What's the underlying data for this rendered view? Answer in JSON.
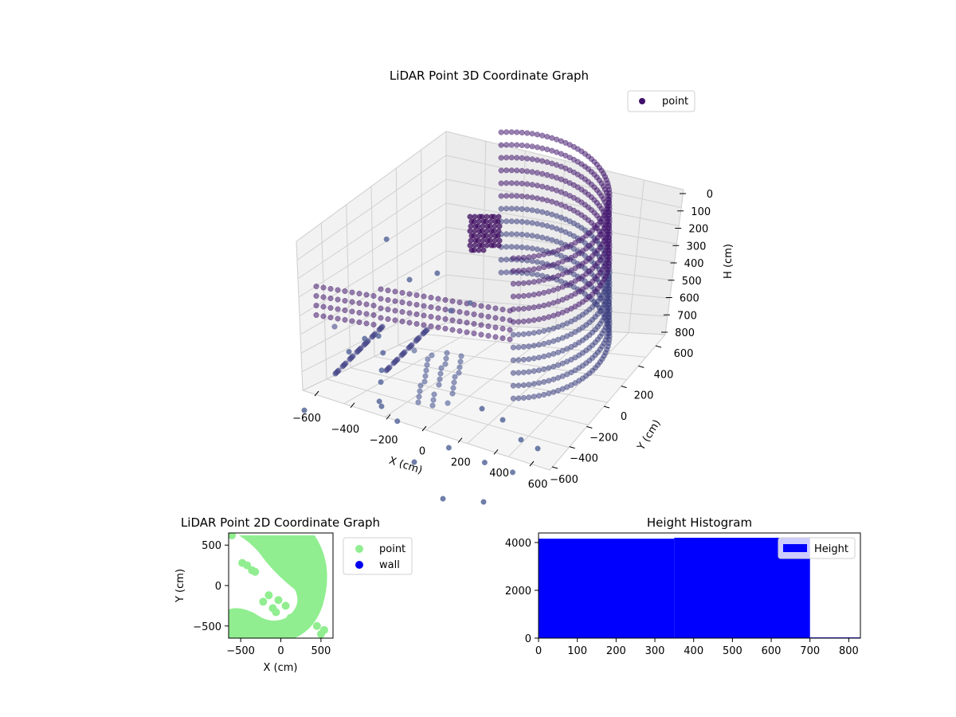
{
  "colors": {
    "point3d": "#41106b",
    "point2d": "#90ee90",
    "wall": "#0000ee",
    "histogram": "#0000ff",
    "grid": "#d0d0d0",
    "pane": "#f2f2f2"
  },
  "chart_data": [
    {
      "id": "lidar-3d",
      "type": "scatter",
      "projection": "3d",
      "title": "LiDAR Point 3D Coordinate Graph",
      "xlabel": "X (cm)",
      "ylabel": "Y (cm)",
      "zlabel": "H (cm)",
      "x_ticks": [
        "−600",
        "−400",
        "−200",
        "0",
        "200",
        "400",
        "600"
      ],
      "y_ticks": [
        "−600",
        "−400",
        "−200",
        "0",
        "200",
        "400",
        "600"
      ],
      "z_ticks": [
        "0",
        "100",
        "200",
        "300",
        "400",
        "500",
        "600",
        "700",
        "800"
      ],
      "xlim": [
        -650,
        650
      ],
      "ylim": [
        -650,
        650
      ],
      "zlim": [
        0,
        850
      ],
      "z_inverted": true,
      "grid": true,
      "legend": {
        "placement": "top-right",
        "entries": [
          "point"
        ]
      },
      "series": [
        {
          "name": "point",
          "outer_wall_radius_cm": 600,
          "outer_wall_angles_deg": [
            -75,
            -60,
            -45,
            -30,
            -15,
            0,
            15,
            30,
            45,
            60,
            75,
            90
          ],
          "inner_wall_radius_cm": 350,
          "wall_heights_cm": [
            0,
            100,
            200,
            300,
            400,
            500,
            600,
            700,
            800
          ],
          "scattered_points": [
            {
              "x": -650,
              "y": 200,
              "h": 800
            },
            {
              "x": -620,
              "y": 380,
              "h": 780
            },
            {
              "x": -560,
              "y": 420,
              "h": 760
            },
            {
              "x": -500,
              "y": 300,
              "h": 790
            },
            {
              "x": -450,
              "y": 100,
              "h": 800
            },
            {
              "x": -400,
              "y": -100,
              "h": 780
            },
            {
              "x": -350,
              "y": -300,
              "h": 800
            },
            {
              "x": -300,
              "y": -450,
              "h": 760
            },
            {
              "x": -200,
              "y": -500,
              "h": 790
            },
            {
              "x": 100,
              "y": -600,
              "h": 800
            },
            {
              "x": 300,
              "y": -640,
              "h": 800
            },
            {
              "x": 450,
              "y": -650,
              "h": 800
            },
            {
              "x": -600,
              "y": 550,
              "h": 300
            },
            {
              "x": -450,
              "y": 500,
              "h": 450
            },
            {
              "x": -300,
              "y": 450,
              "h": 350
            },
            {
              "x": -200,
              "y": 400,
              "h": 500
            },
            {
              "x": -100,
              "y": 380,
              "h": 420
            }
          ]
        }
      ]
    },
    {
      "id": "lidar-2d",
      "type": "scatter",
      "title": "LiDAR Point 2D Coordinate Graph",
      "xlabel": "X (cm)",
      "ylabel": "Y (cm)",
      "x_ticks": [
        "−500",
        "0",
        "500"
      ],
      "y_ticks": [
        "−500",
        "0",
        "500"
      ],
      "xlim": [
        -650,
        650
      ],
      "ylim": [
        -650,
        650
      ],
      "legend": {
        "placement": "outside-right",
        "entries": [
          "point",
          "wall"
        ]
      },
      "series": [
        {
          "name": "point",
          "points": [
            {
              "x": -610,
              "y": 620
            },
            {
              "x": -480,
              "y": 280
            },
            {
              "x": -420,
              "y": 250
            },
            {
              "x": -360,
              "y": 190
            },
            {
              "x": -320,
              "y": 170
            },
            {
              "x": -150,
              "y": -120
            },
            {
              "x": -220,
              "y": -200
            },
            {
              "x": -100,
              "y": -280
            },
            {
              "x": -60,
              "y": -330
            },
            {
              "x": 120,
              "y": -400
            },
            {
              "x": 230,
              "y": -380
            },
            {
              "x": -30,
              "y": -180
            },
            {
              "x": 60,
              "y": -250
            },
            {
              "x": -560,
              "y": -620
            },
            {
              "x": 500,
              "y": -600
            },
            {
              "x": 540,
              "y": -550
            },
            {
              "x": 450,
              "y": -500
            },
            {
              "x": 300,
              "y": -500
            },
            {
              "x": -300,
              "y": -560
            }
          ]
        },
        {
          "name": "wall",
          "points": []
        }
      ]
    },
    {
      "id": "height-hist",
      "type": "bar",
      "title": "Height Histogram",
      "xlabel": "",
      "ylabel": "",
      "x_ticks": [
        "0",
        "100",
        "200",
        "300",
        "400",
        "500",
        "600",
        "700",
        "800"
      ],
      "y_ticks": [
        "0",
        "2000",
        "4000"
      ],
      "xlim": [
        0,
        830
      ],
      "ylim": [
        0,
        4400
      ],
      "legend": {
        "placement": "top-right",
        "entries": [
          "Height"
        ]
      },
      "series": [
        {
          "name": "Height",
          "bins": [
            {
              "start": 0,
              "end": 350,
              "count": 4160
            },
            {
              "start": 350,
              "end": 700,
              "count": 4200
            },
            {
              "start": 700,
              "end": 830,
              "count": 30
            }
          ]
        }
      ]
    }
  ]
}
